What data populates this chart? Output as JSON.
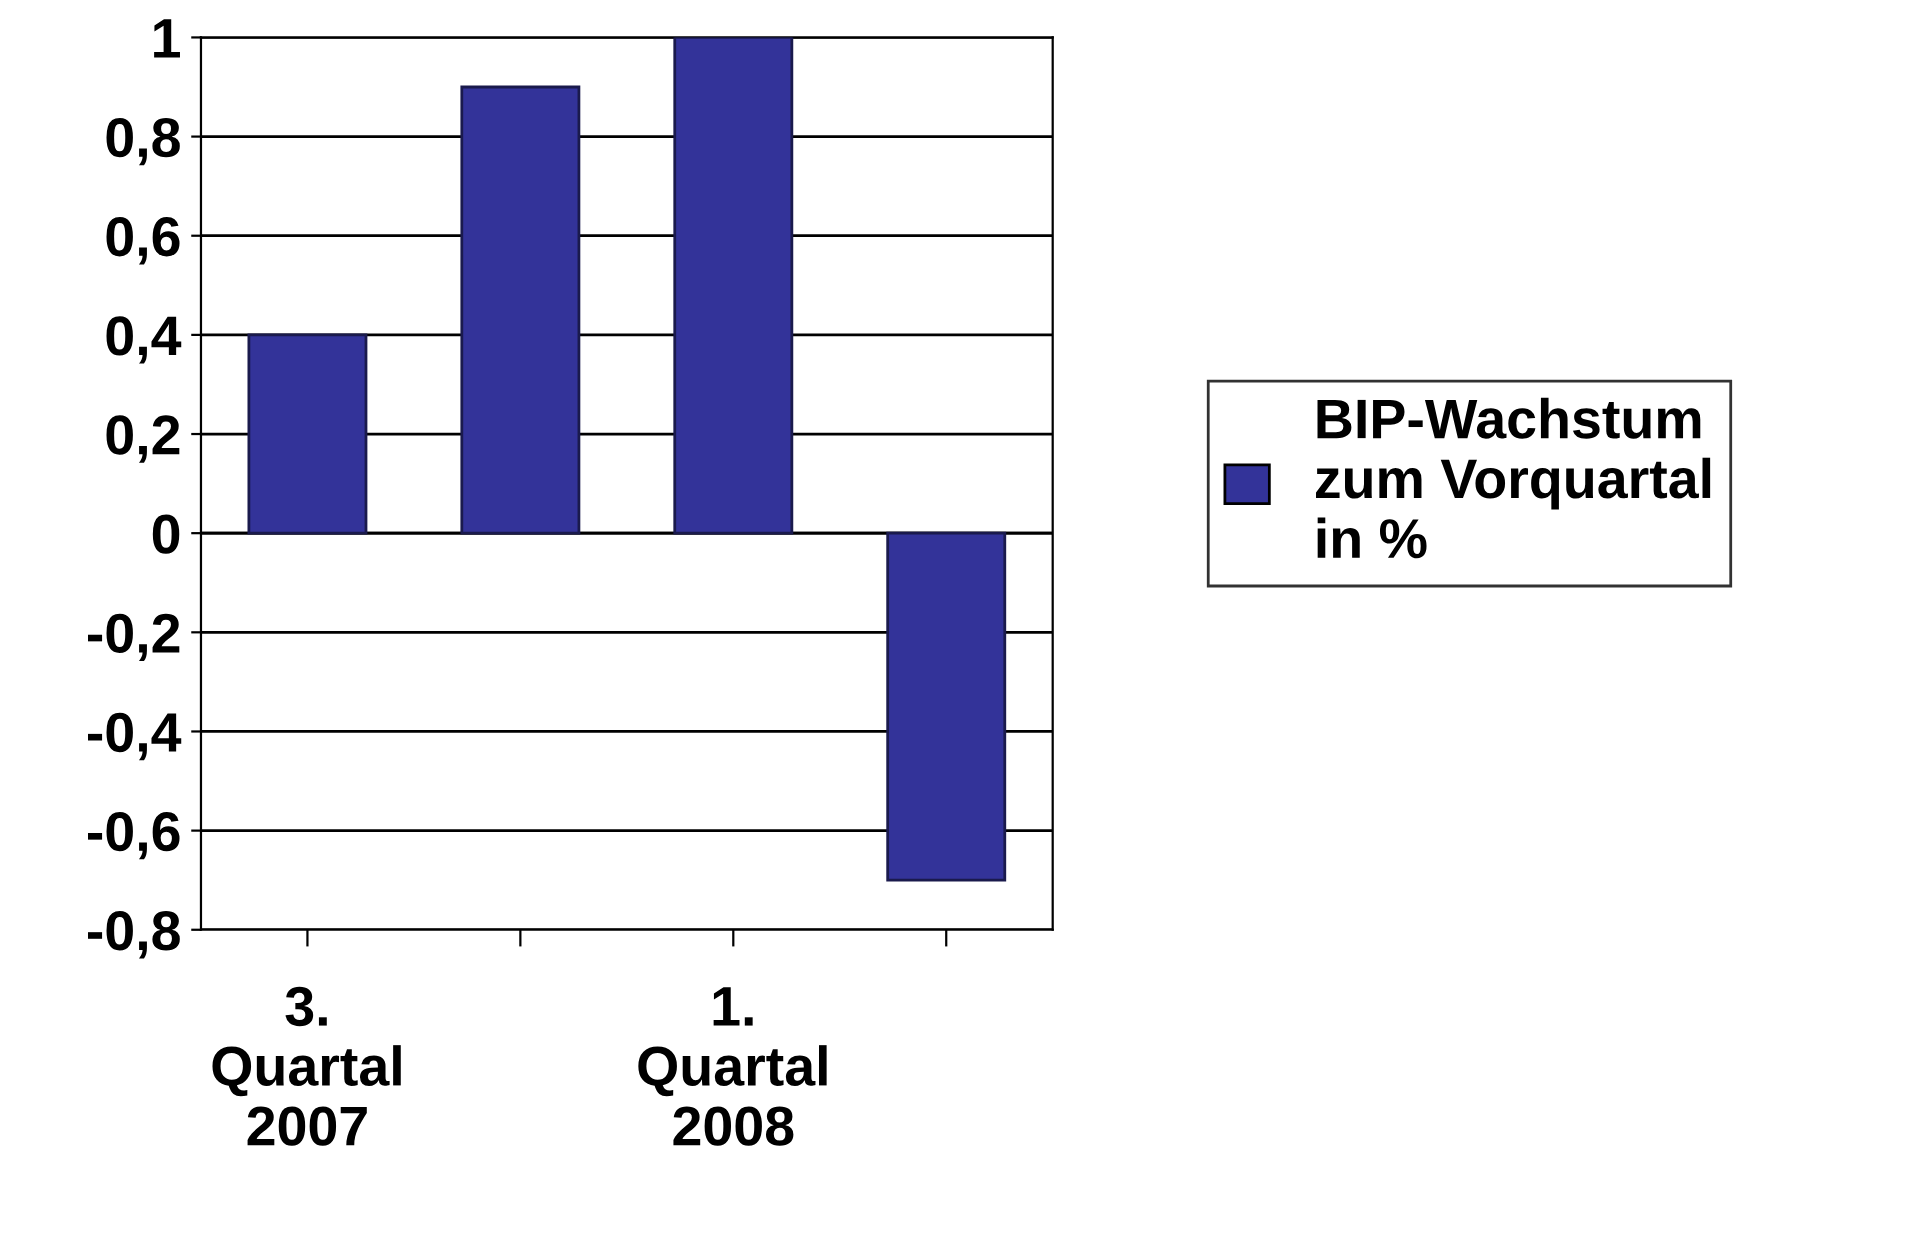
{
  "chart_data": {
    "type": "bar",
    "categories": [
      "3.\nQuartal\n2007",
      null,
      "1.\nQuartal\n2008",
      null
    ],
    "series": [
      {
        "name": "BIP-Wachstum\nzum Vorquartal\nin %",
        "color": "#333399",
        "values": [
          0.4,
          0.9,
          1.0,
          -0.7
        ]
      }
    ],
    "ylim": [
      -0.8,
      1
    ],
    "yticks": [
      {
        "value": -0.8,
        "label": "-0,8"
      },
      {
        "value": -0.6,
        "label": "-0,6"
      },
      {
        "value": -0.4,
        "label": "-0,4"
      },
      {
        "value": -0.2,
        "label": "-0,2"
      },
      0,
      {
        "value": 0.2,
        "label": "0,2"
      },
      {
        "value": 0.4,
        "label": "0,4"
      },
      {
        "value": 0.6,
        "label": "0,6"
      },
      {
        "value": 0.8,
        "label": "0,8"
      },
      1
    ],
    "grid": "y",
    "legend": "right"
  }
}
